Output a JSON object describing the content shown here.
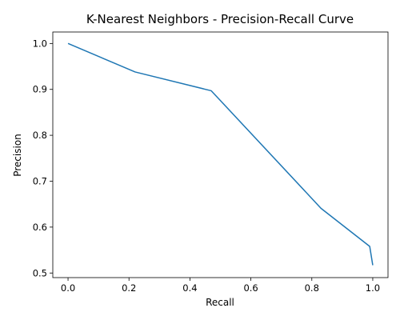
{
  "chart_data": {
    "type": "line",
    "title": "K-Nearest Neighbors - Precision-Recall Curve",
    "xlabel": "Recall",
    "ylabel": "Precision",
    "xlim": [
      -0.05,
      1.05
    ],
    "ylim": [
      0.49,
      1.025
    ],
    "xticks": [
      0.0,
      0.2,
      0.4,
      0.6,
      0.8,
      1.0
    ],
    "yticks": [
      0.5,
      0.6,
      0.7,
      0.8,
      0.9,
      1.0
    ],
    "xtick_labels": [
      "0.0",
      "0.2",
      "0.4",
      "0.6",
      "0.8",
      "1.0"
    ],
    "ytick_labels": [
      "0.5",
      "0.6",
      "0.7",
      "0.8",
      "0.9",
      "1.0"
    ],
    "grid": false,
    "legend": false,
    "series": [
      {
        "color": "#1f77b4",
        "x": [
          0.0,
          0.22,
          0.47,
          0.83,
          0.99,
          1.0
        ],
        "y": [
          1.0,
          0.938,
          0.897,
          0.641,
          0.558,
          0.517
        ]
      }
    ]
  }
}
